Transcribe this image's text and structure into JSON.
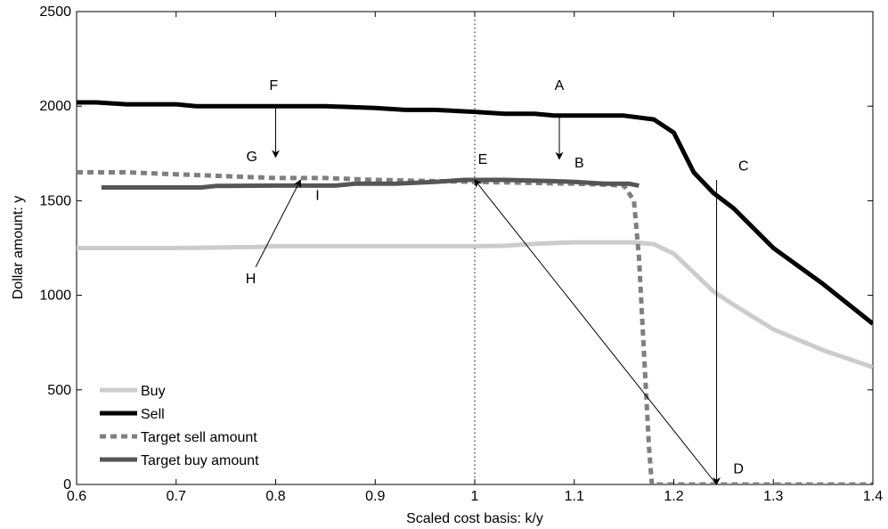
{
  "chart_data": {
    "type": "line",
    "title": "",
    "xlabel": "Scaled cost basis: k/y",
    "ylabel": "Dollar amount: y",
    "xlim": [
      0.6,
      1.4
    ],
    "ylim": [
      0,
      2500
    ],
    "xticks": [
      0.6,
      0.7,
      0.8,
      0.9,
      1.0,
      1.1,
      1.2,
      1.3,
      1.4
    ],
    "xtick_labels": [
      "0.6",
      "0.7",
      "0.8",
      "0.9",
      "1",
      "1.1",
      "1.2",
      "1.3",
      "1.4"
    ],
    "yticks": [
      0,
      500,
      1000,
      1500,
      2000,
      2500
    ],
    "ytick_labels": [
      "0",
      "500",
      "1000",
      "1500",
      "2000",
      "2500"
    ],
    "grid": false,
    "legend_position": "bottom-left",
    "reference_line": {
      "x": 1.0,
      "style": "dotted"
    },
    "series": [
      {
        "name": "Buy",
        "color": "#cccccc",
        "dash": "solid",
        "points": [
          [
            0.6,
            1250
          ],
          [
            0.7,
            1250
          ],
          [
            0.78,
            1255
          ],
          [
            0.8,
            1260
          ],
          [
            0.9,
            1260
          ],
          [
            1.0,
            1260
          ],
          [
            1.03,
            1262
          ],
          [
            1.06,
            1272
          ],
          [
            1.1,
            1280
          ],
          [
            1.16,
            1280
          ],
          [
            1.18,
            1270
          ],
          [
            1.2,
            1220
          ],
          [
            1.22,
            1120
          ],
          [
            1.24,
            1020
          ],
          [
            1.26,
            950
          ],
          [
            1.3,
            820
          ],
          [
            1.35,
            710
          ],
          [
            1.4,
            620
          ]
        ]
      },
      {
        "name": "Sell",
        "color": "#000000",
        "dash": "solid",
        "points": [
          [
            0.6,
            2020
          ],
          [
            0.62,
            2020
          ],
          [
            0.65,
            2010
          ],
          [
            0.7,
            2010
          ],
          [
            0.72,
            2000
          ],
          [
            0.8,
            2000
          ],
          [
            0.85,
            2000
          ],
          [
            0.9,
            1990
          ],
          [
            0.93,
            1980
          ],
          [
            0.96,
            1980
          ],
          [
            1.0,
            1970
          ],
          [
            1.03,
            1960
          ],
          [
            1.06,
            1960
          ],
          [
            1.08,
            1950
          ],
          [
            1.15,
            1950
          ],
          [
            1.18,
            1930
          ],
          [
            1.2,
            1860
          ],
          [
            1.22,
            1650
          ],
          [
            1.24,
            1540
          ],
          [
            1.26,
            1460
          ],
          [
            1.3,
            1250
          ],
          [
            1.35,
            1060
          ],
          [
            1.4,
            850
          ]
        ]
      },
      {
        "name": "Target sell amount",
        "color": "#7f7f7f",
        "dash": "dashed",
        "points": [
          [
            0.6,
            1650
          ],
          [
            0.65,
            1650
          ],
          [
            0.7,
            1640
          ],
          [
            0.8,
            1620
          ],
          [
            0.85,
            1620
          ],
          [
            0.9,
            1610
          ],
          [
            1.0,
            1600
          ],
          [
            1.05,
            1595
          ],
          [
            1.1,
            1590
          ],
          [
            1.13,
            1585
          ],
          [
            1.15,
            1580
          ],
          [
            1.16,
            1500
          ],
          [
            1.165,
            1200
          ],
          [
            1.17,
            700
          ],
          [
            1.175,
            200
          ],
          [
            1.178,
            0
          ],
          [
            1.2,
            0
          ],
          [
            1.3,
            0
          ],
          [
            1.4,
            0
          ]
        ]
      },
      {
        "name": "Target buy amount",
        "color": "#555555",
        "dash": "solid",
        "points": [
          [
            0.625,
            1570
          ],
          [
            0.7,
            1570
          ],
          [
            0.725,
            1570
          ],
          [
            0.74,
            1578
          ],
          [
            0.8,
            1580
          ],
          [
            0.86,
            1580
          ],
          [
            0.88,
            1590
          ],
          [
            0.92,
            1590
          ],
          [
            0.96,
            1600
          ],
          [
            0.99,
            1610
          ],
          [
            1.03,
            1610
          ],
          [
            1.07,
            1605
          ],
          [
            1.1,
            1600
          ],
          [
            1.13,
            1590
          ],
          [
            1.155,
            1590
          ],
          [
            1.165,
            1580
          ]
        ]
      }
    ],
    "annotations": [
      {
        "label": "A",
        "text_at": [
          1.085,
          2085
        ],
        "arrow_from": [
          1.085,
          1950
        ],
        "arrow_to": [
          1.085,
          1720
        ]
      },
      {
        "label": "B",
        "text_at": [
          1.105,
          1675
        ]
      },
      {
        "label": "C",
        "text_at": [
          1.27,
          1660
        ],
        "arrow_from": [
          1.243,
          1610
        ],
        "arrow_to": [
          1.243,
          0
        ]
      },
      {
        "label": "D",
        "text_at": [
          1.265,
          60
        ]
      },
      {
        "label": "E",
        "text_at": [
          1.008,
          1695
        ],
        "arrow_from": [
          1.243,
          0
        ],
        "arrow_to": [
          1.0,
          1610
        ]
      },
      {
        "label": "F",
        "text_at": [
          0.798,
          2085
        ],
        "arrow_from": [
          0.8,
          2000
        ],
        "arrow_to": [
          0.8,
          1730
        ]
      },
      {
        "label": "G",
        "text_at": [
          0.776,
          1710
        ]
      },
      {
        "label": "H",
        "text_at": [
          0.775,
          1065
        ],
        "arrow_from": [
          0.78,
          1150
        ],
        "arrow_to": [
          0.825,
          1610
        ]
      },
      {
        "label": "I",
        "text_at": [
          0.842,
          1505
        ]
      }
    ]
  }
}
